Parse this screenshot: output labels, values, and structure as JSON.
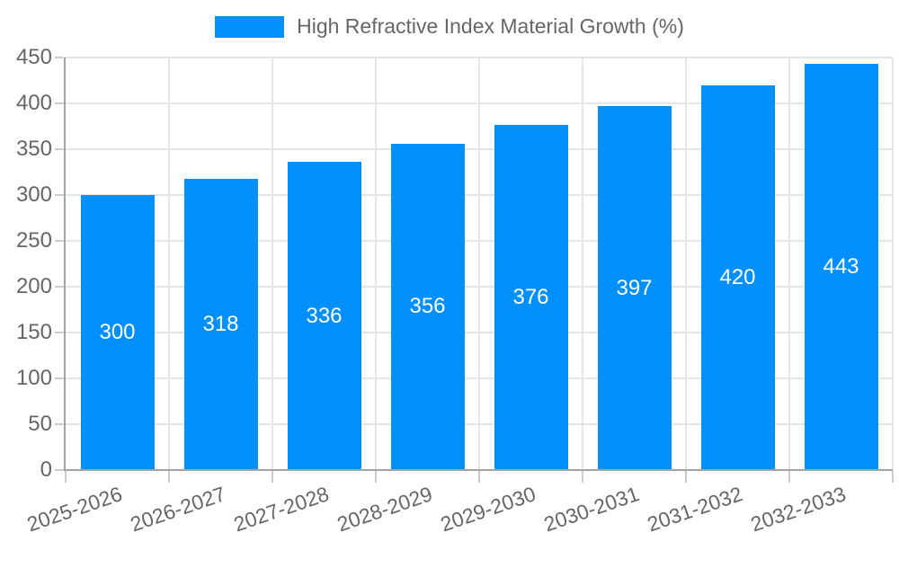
{
  "legend": {
    "label": "High Refractive Index Material Growth (%)",
    "swatch_color": "#008FFB"
  },
  "chart_data": {
    "type": "bar",
    "title": "High Refractive Index Material Growth (%)",
    "series": [
      {
        "name": "High Refractive Index Material Growth (%)",
        "values": [
          300,
          318,
          336,
          356,
          376,
          397,
          420,
          443
        ]
      }
    ],
    "categories": [
      "2025-2026",
      "2026-2027",
      "2027-2028",
      "2028-2029",
      "2029-2030",
      "2030-2031",
      "2031-2032",
      "2032-2033"
    ],
    "value_labels": [
      "300",
      "318",
      "336",
      "356",
      "376",
      "397",
      "420",
      "443"
    ],
    "xlabel": "",
    "ylabel": "",
    "ylim": [
      0,
      450
    ],
    "yticks": [
      0,
      50,
      100,
      150,
      200,
      250,
      300,
      350,
      400,
      450
    ],
    "grid": true,
    "legend_position": "top-center",
    "colors": {
      "bar": "#008FFB",
      "bar_value_label": "#ffffff",
      "tick_label": "#666666",
      "legend_label": "#666666",
      "gridline": "#e5e5e5",
      "axis_line": "#a3a3a3",
      "tick_mark": "#cccccc",
      "background": "#ffffff"
    }
  }
}
